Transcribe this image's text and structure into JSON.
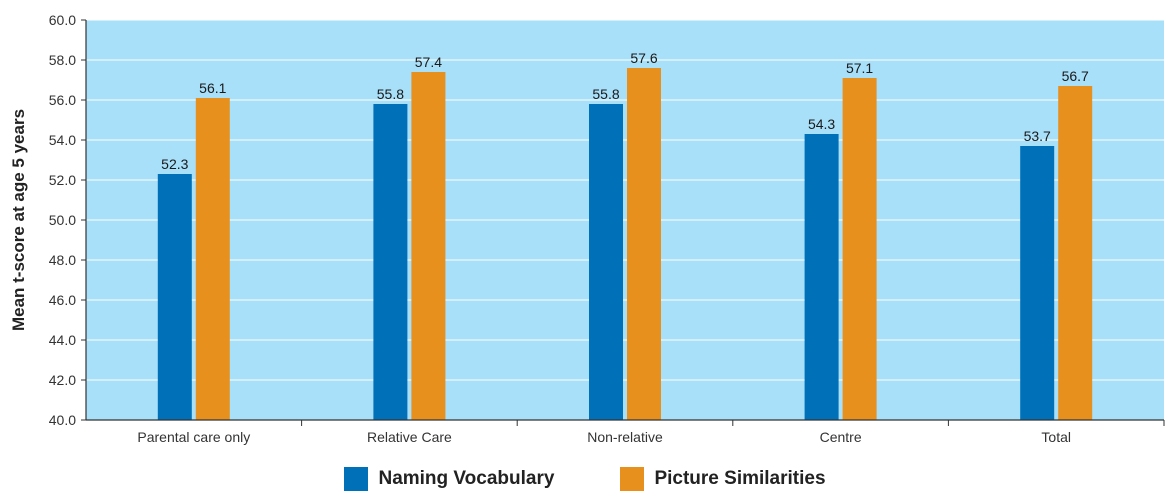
{
  "chart_data": {
    "type": "bar",
    "categories": [
      "Parental care only",
      "Relative Care",
      "Non-relative",
      "Centre",
      "Total"
    ],
    "series": [
      {
        "name": "Naming Vocabulary",
        "color": "#0070b8",
        "values": [
          52.3,
          55.8,
          55.8,
          54.3,
          53.7
        ]
      },
      {
        "name": "Picture Similarities",
        "color": "#e8901e",
        "values": [
          56.1,
          57.4,
          57.6,
          57.1,
          56.7
        ]
      }
    ],
    "ylabel": "Mean t-score at age 5 years",
    "ylim": [
      40,
      60
    ],
    "yticks": [
      "40.0",
      "42.0",
      "44.0",
      "46.0",
      "48.0",
      "50.0",
      "52.0",
      "54.0",
      "56.0",
      "58.0",
      "60.0"
    ],
    "background_color": "#a8dff9",
    "grid": true,
    "legend_position": "bottom"
  }
}
